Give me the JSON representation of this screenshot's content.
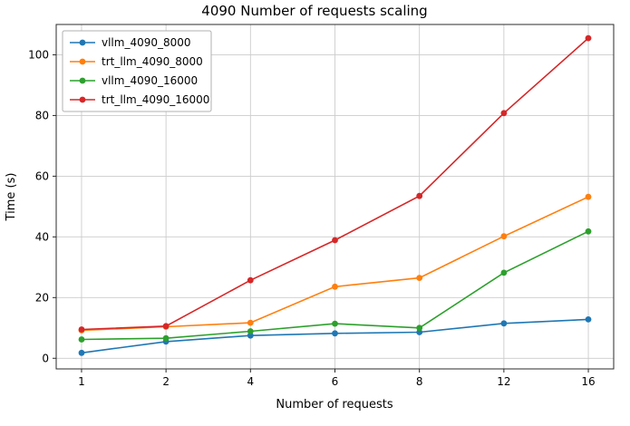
{
  "chart_data": {
    "type": "line",
    "title": "4090 Number of requests scaling",
    "xlabel": "Number of requests",
    "ylabel": "Time (s)",
    "categories": [
      "1",
      "2",
      "4",
      "6",
      "8",
      "12",
      "16"
    ],
    "yticks": [
      0,
      20,
      40,
      60,
      80,
      100
    ],
    "ylim": [
      -3.5,
      110
    ],
    "grid": true,
    "legend_position": "upper left",
    "marker": "circle",
    "series": [
      {
        "name": "vllm_4090_8000",
        "color": "#1f77b4",
        "values": [
          1.8,
          5.5,
          7.5,
          8.2,
          8.6,
          11.5,
          12.8
        ]
      },
      {
        "name": "trt_llm_4090_8000",
        "color": "#ff7f0e",
        "values": [
          9.2,
          10.4,
          11.7,
          23.6,
          26.5,
          40.2,
          53.2
        ]
      },
      {
        "name": "vllm_4090_16000",
        "color": "#2ca02c",
        "values": [
          6.2,
          6.6,
          8.9,
          11.4,
          10.0,
          28.2,
          41.8
        ]
      },
      {
        "name": "trt_llm_4090_16000",
        "color": "#d62728",
        "values": [
          9.5,
          10.6,
          25.7,
          38.9,
          53.5,
          80.8,
          105.5
        ]
      }
    ]
  }
}
